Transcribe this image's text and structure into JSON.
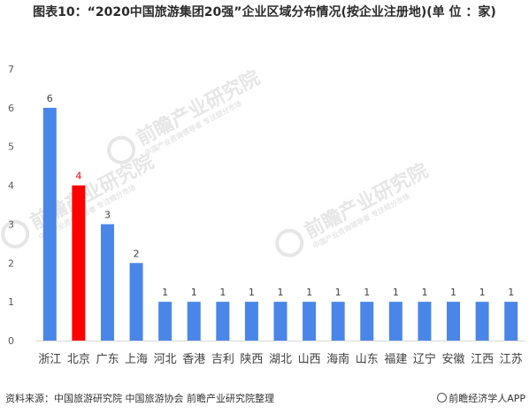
{
  "chart_data": {
    "type": "bar",
    "title": "图表10：“2020中国旅游集团20强”企业区域分布情况(按企业注册地)(单 位 ：家)",
    "categories": [
      "浙江",
      "北京",
      "广东",
      "上海",
      "河北",
      "香港",
      "吉利",
      "陕西",
      "湖北",
      "山西",
      "海南",
      "山东",
      "福建",
      "辽宁",
      "安徽",
      "江西",
      "江苏"
    ],
    "values": [
      6,
      4,
      3,
      2,
      1,
      1,
      1,
      1,
      1,
      1,
      1,
      1,
      1,
      1,
      1,
      1,
      1
    ],
    "bar_colors": [
      "#4a86e8",
      "#ff0000",
      "#4a86e8",
      "#4a86e8",
      "#4a86e8",
      "#4a86e8",
      "#4a86e8",
      "#4a86e8",
      "#4a86e8",
      "#4a86e8",
      "#4a86e8",
      "#4a86e8",
      "#4a86e8",
      "#4a86e8",
      "#4a86e8",
      "#4a86e8",
      "#4a86e8"
    ],
    "label_colors": [
      "#404040",
      "#ff0000",
      "#404040",
      "#404040",
      "#404040",
      "#404040",
      "#404040",
      "#404040",
      "#404040",
      "#404040",
      "#404040",
      "#404040",
      "#404040",
      "#404040",
      "#404040",
      "#404040",
      "#404040"
    ],
    "yticks": [
      0,
      1,
      2,
      3,
      4,
      5,
      6,
      7
    ],
    "ylim": [
      0,
      7
    ],
    "grid": false,
    "legend": "none"
  },
  "source": "资料来源：中国旅游研究院 中国旅游协会 前瞻产业研究院整理",
  "brand": "前瞻经济学人APP",
  "watermark": {
    "main": "前瞻产业研究院",
    "sub": "中国产业咨询领导者 专注细分市场"
  },
  "colors": {
    "primary_bar": "#4a86e8",
    "highlight_bar": "#ff0000",
    "axis": "#d9d9d9",
    "text": "#404040"
  }
}
